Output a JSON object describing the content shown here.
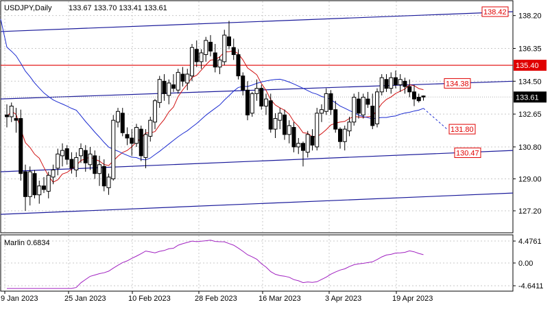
{
  "chart_data": [
    {
      "type": "candlestick",
      "title": "USDJPY,Daily",
      "ohlc_readout": "133.67 133.70 133.41 133.61",
      "x_labels": [
        "9 Jan 2023",
        "25 Jan 2023",
        "10 Feb 2023",
        "28 Feb 2023",
        "16 Mar 2023",
        "3 Apr 2023",
        "19 Apr 2023"
      ],
      "y_ticks": [
        "138.20",
        "136.35",
        "134.50",
        "132.65",
        "130.80",
        "129.00",
        "127.20"
      ],
      "ylim": [
        126.0,
        139.0
      ],
      "grid": true,
      "price_marks": [
        {
          "label": "138.42",
          "value": 138.42
        },
        {
          "label": "134.38",
          "value": 134.38
        },
        {
          "label": "131.80",
          "value": 131.8
        },
        {
          "label": "130.47",
          "value": 130.47
        }
      ],
      "resistance_line": {
        "value": 135.4,
        "label": "135.40",
        "color": "#e00000"
      },
      "current_price": {
        "value": 133.61,
        "label": "133.61"
      },
      "channel_lines": [
        {
          "from": 137.3,
          "to": 138.42
        },
        {
          "from": 133.5,
          "to": 134.5
        },
        {
          "from": 129.4,
          "to": 130.6
        },
        {
          "from": 127.0,
          "to": 128.2
        }
      ],
      "candles": [
        [
          132.6,
          133.2,
          131.9,
          132.5
        ],
        [
          132.5,
          133.3,
          132.2,
          133.1
        ],
        [
          132.4,
          133.0,
          131.6,
          132.3
        ],
        [
          132.4,
          132.9,
          128.9,
          129.3
        ],
        [
          129.4,
          129.8,
          127.2,
          128.0
        ],
        [
          128.0,
          129.7,
          127.5,
          129.4
        ],
        [
          129.3,
          129.5,
          127.9,
          128.1
        ],
        [
          128.1,
          128.9,
          127.6,
          128.6
        ],
        [
          128.6,
          129.1,
          128.2,
          128.4
        ],
        [
          128.3,
          129.4,
          127.9,
          129.2
        ],
        [
          129.1,
          129.8,
          128.7,
          129.5
        ],
        [
          129.6,
          130.7,
          129.2,
          130.4
        ],
        [
          130.3,
          131.0,
          129.7,
          130.6
        ],
        [
          130.7,
          130.9,
          129.8,
          130.1
        ],
        [
          130.1,
          130.5,
          129.3,
          129.6
        ],
        [
          129.5,
          130.5,
          129.1,
          130.2
        ],
        [
          130.3,
          131.0,
          129.9,
          130.7
        ],
        [
          130.6,
          130.9,
          129.4,
          129.9
        ],
        [
          129.8,
          130.8,
          129.5,
          130.4
        ],
        [
          130.3,
          130.6,
          129.0,
          129.3
        ],
        [
          129.3,
          130.3,
          128.6,
          129.8
        ],
        [
          129.7,
          130.1,
          128.3,
          128.6
        ],
        [
          128.5,
          129.3,
          128.1,
          129.1
        ],
        [
          129.0,
          132.6,
          128.9,
          132.3
        ],
        [
          132.2,
          133.0,
          131.9,
          132.8
        ],
        [
          132.7,
          133.0,
          131.4,
          131.6
        ],
        [
          131.5,
          131.9,
          130.9,
          131.3
        ],
        [
          131.3,
          131.8,
          130.3,
          131.0
        ],
        [
          131.0,
          132.1,
          130.8,
          131.9
        ],
        [
          131.8,
          132.0,
          130.0,
          130.3
        ],
        [
          130.2,
          131.8,
          129.6,
          131.5
        ],
        [
          131.4,
          132.5,
          131.1,
          132.3
        ],
        [
          132.2,
          133.5,
          131.8,
          133.4
        ],
        [
          133.3,
          134.8,
          133.0,
          134.6
        ],
        [
          134.5,
          134.9,
          133.4,
          133.8
        ],
        [
          133.7,
          134.6,
          133.2,
          134.4
        ],
        [
          134.3,
          134.9,
          133.9,
          134.1
        ],
        [
          134.0,
          135.2,
          133.8,
          135.0
        ],
        [
          134.9,
          135.3,
          134.2,
          134.5
        ],
        [
          134.4,
          135.2,
          134.0,
          134.9
        ],
        [
          134.8,
          136.6,
          134.5,
          136.4
        ],
        [
          136.3,
          136.8,
          135.3,
          135.6
        ],
        [
          135.6,
          136.3,
          135.2,
          136.1
        ],
        [
          136.0,
          137.0,
          135.6,
          136.8
        ],
        [
          136.7,
          137.1,
          135.9,
          136.2
        ],
        [
          136.1,
          136.6,
          135.0,
          135.3
        ],
        [
          135.3,
          135.9,
          134.9,
          135.7
        ],
        [
          135.6,
          137.4,
          135.4,
          137.1
        ],
        [
          137.0,
          137.9,
          136.3,
          136.5
        ],
        [
          136.4,
          136.9,
          135.7,
          136.0
        ],
        [
          136.0,
          136.3,
          134.6,
          134.8
        ],
        [
          134.8,
          135.0,
          133.7,
          134.0
        ],
        [
          134.0,
          134.5,
          132.3,
          132.6
        ],
        [
          132.7,
          133.9,
          132.5,
          133.8
        ],
        [
          133.8,
          134.6,
          133.4,
          134.1
        ],
        [
          134.1,
          134.3,
          132.9,
          133.1
        ],
        [
          133.1,
          133.8,
          132.6,
          133.5
        ],
        [
          133.4,
          133.8,
          131.6,
          131.8
        ],
        [
          131.8,
          132.7,
          131.3,
          132.4
        ],
        [
          132.3,
          133.0,
          131.8,
          132.7
        ],
        [
          132.6,
          132.9,
          131.2,
          131.5
        ],
        [
          131.5,
          132.3,
          131.0,
          132.0
        ],
        [
          131.9,
          132.2,
          130.5,
          130.8
        ],
        [
          130.8,
          131.3,
          130.4,
          131.0
        ],
        [
          131.0,
          131.1,
          129.7,
          130.6
        ],
        [
          130.5,
          131.7,
          130.2,
          131.5
        ],
        [
          131.4,
          131.8,
          130.6,
          130.9
        ],
        [
          130.8,
          133.0,
          130.6,
          132.7
        ],
        [
          132.7,
          133.2,
          132.2,
          132.9
        ],
        [
          132.8,
          134.1,
          132.6,
          133.8
        ],
        [
          133.8,
          134.0,
          132.6,
          132.9
        ],
        [
          132.9,
          133.4,
          131.6,
          131.8
        ],
        [
          131.8,
          131.9,
          130.7,
          131.1
        ],
        [
          131.1,
          132.0,
          130.6,
          131.8
        ],
        [
          131.7,
          132.5,
          131.4,
          132.2
        ],
        [
          132.2,
          133.8,
          132.0,
          133.6
        ],
        [
          133.5,
          133.9,
          132.4,
          132.7
        ],
        [
          132.6,
          133.8,
          132.4,
          133.6
        ],
        [
          133.5,
          133.9,
          133.0,
          133.2
        ],
        [
          133.1,
          133.8,
          131.8,
          132.0
        ],
        [
          132.1,
          134.1,
          131.9,
          133.9
        ],
        [
          133.9,
          134.9,
          133.7,
          134.7
        ],
        [
          134.6,
          134.9,
          133.9,
          134.1
        ],
        [
          134.1,
          135.0,
          133.8,
          134.7
        ],
        [
          134.7,
          135.1,
          134.1,
          134.3
        ],
        [
          134.3,
          134.9,
          133.9,
          134.6
        ],
        [
          134.5,
          134.7,
          133.8,
          134.2
        ],
        [
          134.2,
          134.6,
          133.6,
          133.9
        ],
        [
          133.9,
          134.3,
          133.1,
          133.5
        ],
        [
          133.6,
          133.8,
          133.3,
          133.4
        ],
        [
          133.67,
          133.7,
          133.41,
          133.61
        ]
      ],
      "ma_slow_dashed_label": "131.80",
      "indicator": {
        "name": "Marlin 0.6834",
        "y_ticks": [
          "4.4761",
          "0.00",
          "-4.6411"
        ],
        "ylim": [
          -5.6,
          5.6
        ]
      }
    }
  ]
}
